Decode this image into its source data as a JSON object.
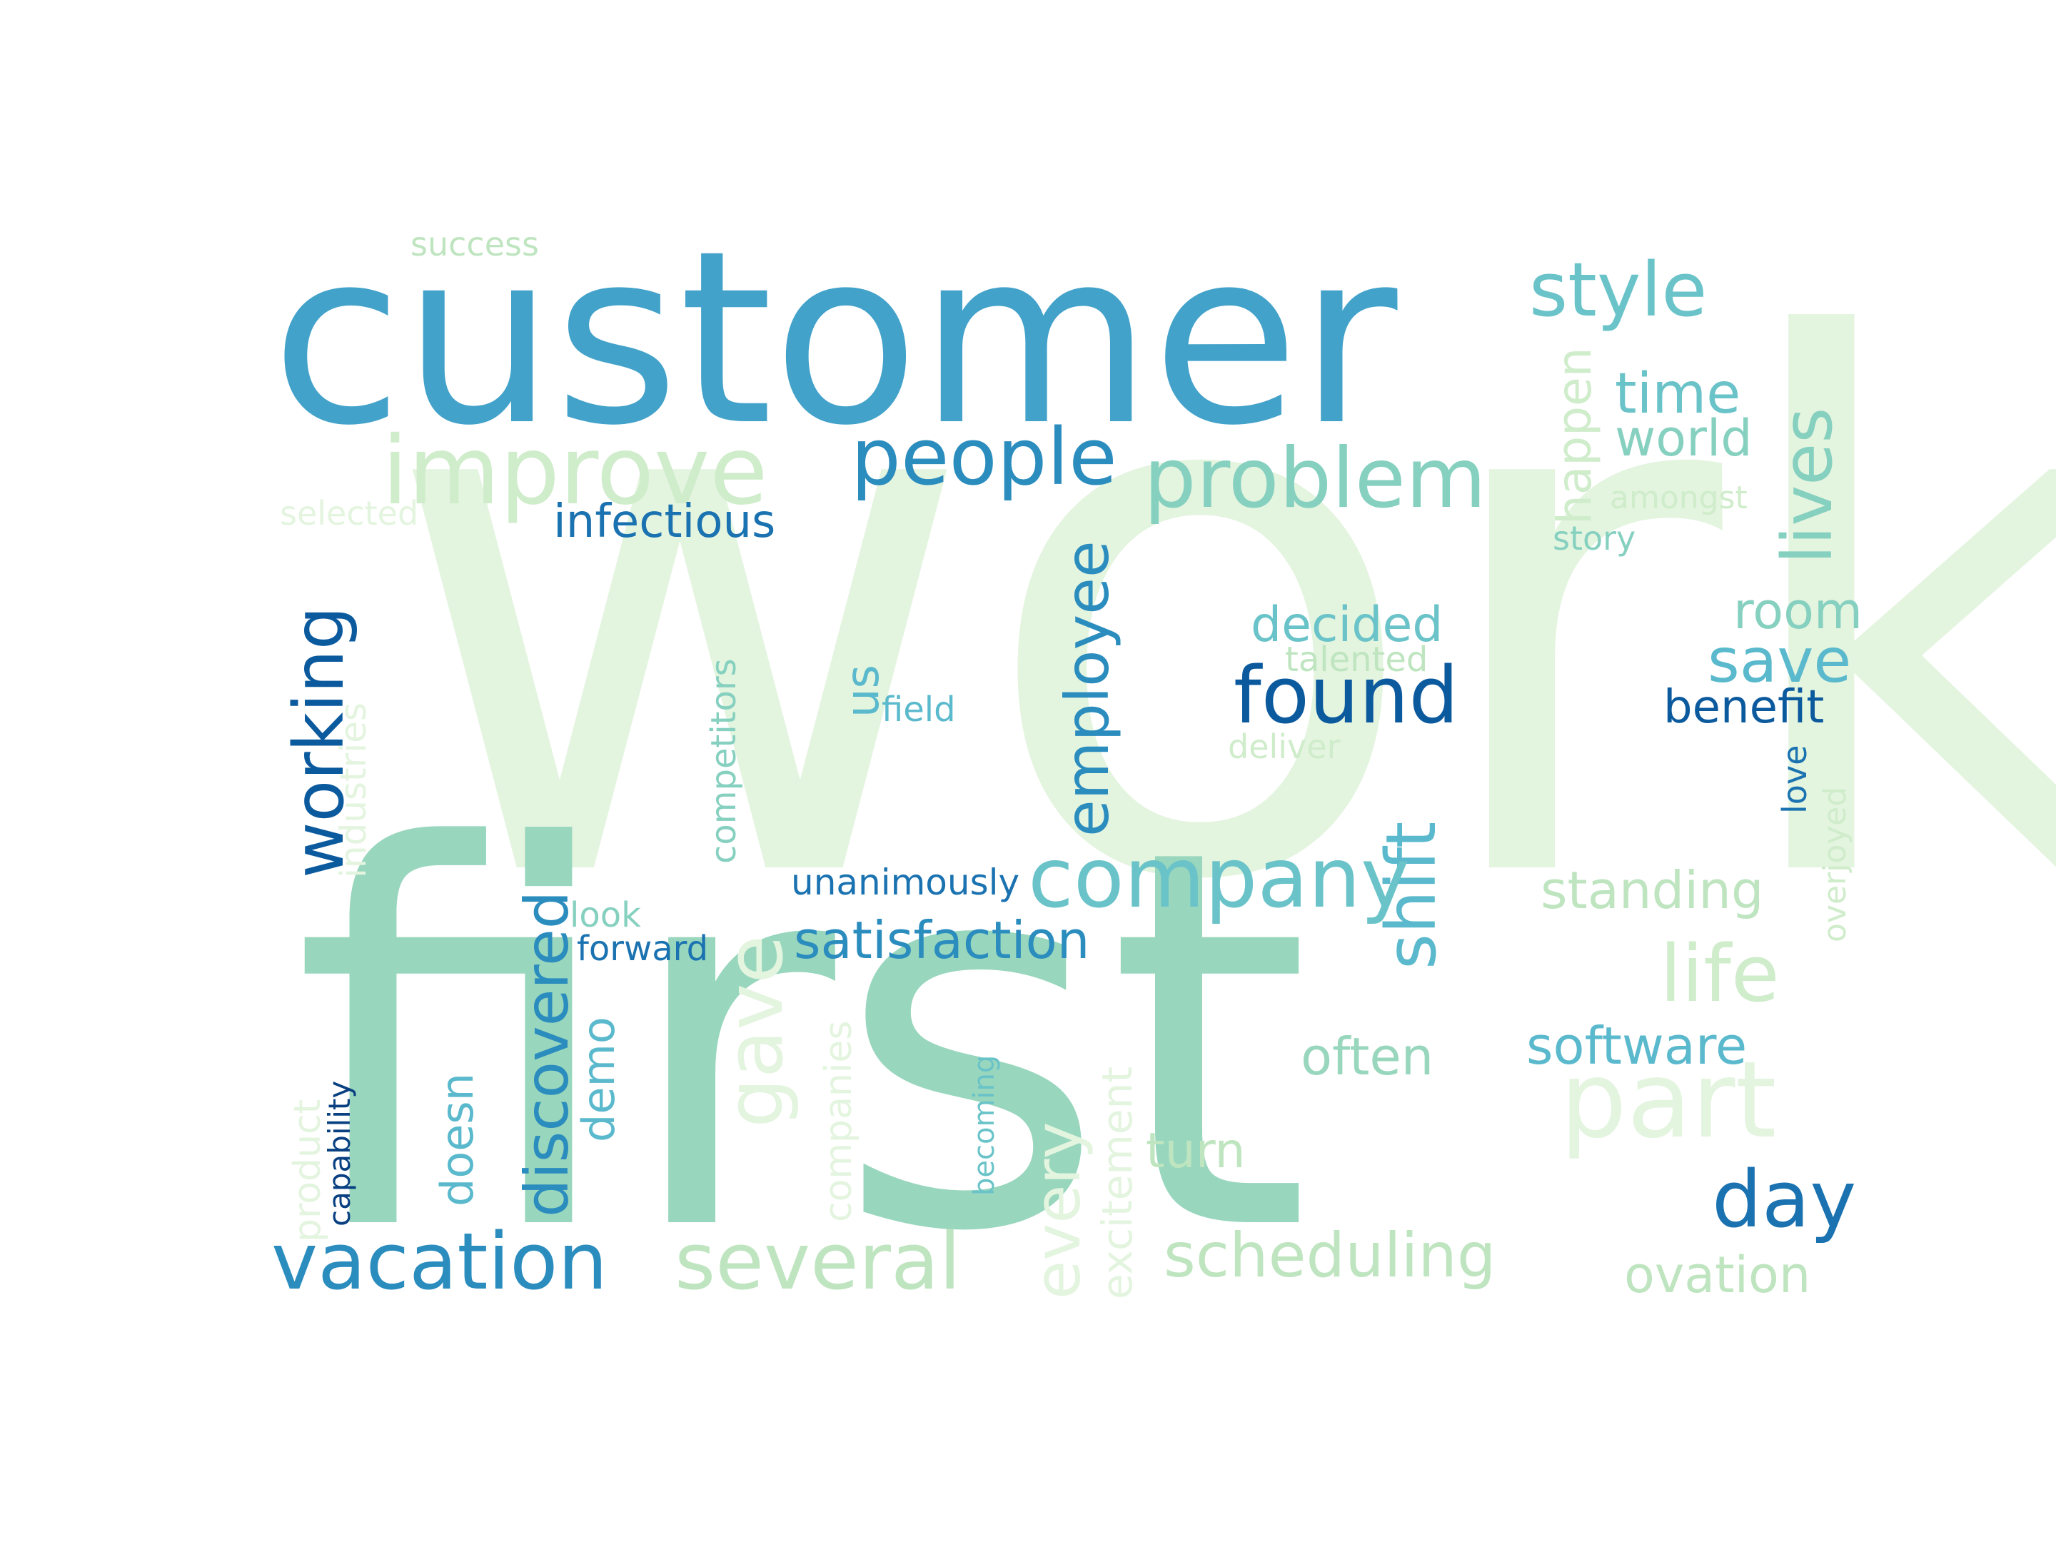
{
  "word_cloud": {
    "palette": {
      "pale_green": "#e3f4df",
      "light_green": "#cfeccb",
      "soft_green": "#bfe5c0",
      "mint": "#98d6bd",
      "seafoam": "#86d0c0",
      "aqua": "#6ac3c8",
      "teal": "#5ab9cc",
      "sky": "#43a2ca",
      "blue": "#2b8cbe",
      "ocean": "#1a72b0",
      "navy": "#0c5a9e",
      "deep_navy": "#084081"
    },
    "words": [
      {
        "text": "work",
        "color": "pale_green"
      },
      {
        "text": "first",
        "color": "mint"
      },
      {
        "text": "customer",
        "color": "sky"
      },
      {
        "text": "improve",
        "color": "light_green"
      },
      {
        "text": "people",
        "color": "blue"
      },
      {
        "text": "problem",
        "color": "seafoam"
      },
      {
        "text": "style",
        "color": "aqua"
      },
      {
        "text": "time",
        "color": "aqua"
      },
      {
        "text": "world",
        "color": "seafoam"
      },
      {
        "text": "lives",
        "color": "seafoam"
      },
      {
        "text": "happen",
        "color": "light_green"
      },
      {
        "text": "amongst",
        "color": "light_green"
      },
      {
        "text": "story",
        "color": "seafoam"
      },
      {
        "text": "success",
        "color": "soft_green"
      },
      {
        "text": "selected",
        "color": "pale_green"
      },
      {
        "text": "infectious",
        "color": "ocean"
      },
      {
        "text": "working",
        "color": "navy"
      },
      {
        "text": "industries",
        "color": "pale_green"
      },
      {
        "text": "competitors",
        "color": "seafoam"
      },
      {
        "text": "us",
        "color": "teal"
      },
      {
        "text": "field",
        "color": "teal"
      },
      {
        "text": "employee",
        "color": "blue"
      },
      {
        "text": "decided",
        "color": "aqua"
      },
      {
        "text": "talented",
        "color": "soft_green"
      },
      {
        "text": "found",
        "color": "navy"
      },
      {
        "text": "deliver",
        "color": "light_green"
      },
      {
        "text": "room",
        "color": "seafoam"
      },
      {
        "text": "save",
        "color": "teal"
      },
      {
        "text": "benefit",
        "color": "navy"
      },
      {
        "text": "love",
        "color": "ocean"
      },
      {
        "text": "overjoyed",
        "color": "light_green"
      },
      {
        "text": "shift",
        "color": "teal"
      },
      {
        "text": "company",
        "color": "aqua"
      },
      {
        "text": "unanimously",
        "color": "ocean"
      },
      {
        "text": "look",
        "color": "seafoam"
      },
      {
        "text": "forward",
        "color": "ocean"
      },
      {
        "text": "satisfaction",
        "color": "blue"
      },
      {
        "text": "gave",
        "color": "pale_green"
      },
      {
        "text": "discovered",
        "color": "blue"
      },
      {
        "text": "demo",
        "color": "teal"
      },
      {
        "text": "doesn",
        "color": "teal"
      },
      {
        "text": "product",
        "color": "pale_green"
      },
      {
        "text": "capability",
        "color": "deep_navy"
      },
      {
        "text": "companies",
        "color": "pale_green"
      },
      {
        "text": "becoming",
        "color": "aqua"
      },
      {
        "text": "every",
        "color": "pale_green"
      },
      {
        "text": "excitement",
        "color": "pale_green"
      },
      {
        "text": "standing",
        "color": "soft_green"
      },
      {
        "text": "life",
        "color": "light_green"
      },
      {
        "text": "often",
        "color": "mint"
      },
      {
        "text": "software",
        "color": "teal"
      },
      {
        "text": "part",
        "color": "pale_green"
      },
      {
        "text": "turn",
        "color": "soft_green"
      },
      {
        "text": "day",
        "color": "ocean"
      },
      {
        "text": "vacation",
        "color": "blue"
      },
      {
        "text": "several",
        "color": "soft_green"
      },
      {
        "text": "scheduling",
        "color": "soft_green"
      },
      {
        "text": "ovation",
        "color": "soft_green"
      }
    ]
  }
}
